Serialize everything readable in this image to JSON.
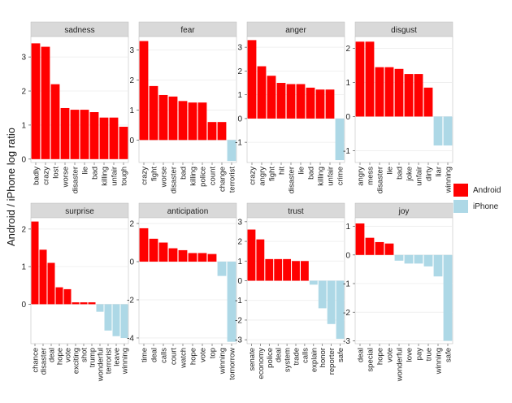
{
  "chart_data": {
    "type": "bar",
    "ylabel": "Android / iPhone log ratio",
    "legend": [
      {
        "name": "Android",
        "color": "#ff0000"
      },
      {
        "name": "iPhone",
        "color": "#add8e6"
      }
    ],
    "panels": [
      {
        "title": "sadness",
        "ylim": [
          -0.1,
          3.6
        ],
        "ticks": [
          0,
          1,
          2,
          3
        ],
        "categories": [
          "badly",
          "crazy",
          "lost",
          "worse",
          "disaster",
          "lie",
          "bad",
          "killing",
          "unfair",
          "tough"
        ],
        "values": [
          3.4,
          3.3,
          2.2,
          1.5,
          1.45,
          1.45,
          1.38,
          1.22,
          1.22,
          0.95
        ]
      },
      {
        "title": "fear",
        "ylim": [
          -0.75,
          3.45
        ],
        "ticks": [
          0,
          1,
          2,
          3
        ],
        "categories": [
          "crazy",
          "fight",
          "worse",
          "disaster",
          "bad",
          "killing",
          "police",
          "count",
          "change",
          "terrorist"
        ],
        "values": [
          3.3,
          1.8,
          1.5,
          1.45,
          1.3,
          1.25,
          1.25,
          0.6,
          0.6,
          -0.7
        ]
      },
      {
        "title": "anger",
        "ylim": [
          -1.85,
          3.45
        ],
        "ticks": [
          -1,
          0,
          1,
          2,
          3
        ],
        "categories": [
          "crazy",
          "angry",
          "fight",
          "hit",
          "disaster",
          "lie",
          "bad",
          "killing",
          "unfair",
          "crime"
        ],
        "values": [
          3.3,
          2.2,
          1.8,
          1.5,
          1.45,
          1.45,
          1.3,
          1.22,
          1.22,
          -1.75
        ]
      },
      {
        "title": "disgust",
        "ylim": [
          -1.35,
          2.35
        ],
        "ticks": [
          -1,
          0,
          1,
          2
        ],
        "categories": [
          "angry",
          "mess",
          "disaster",
          "lie",
          "bad",
          "joke",
          "unfair",
          "dirty",
          "liar",
          "winning"
        ],
        "values": [
          2.2,
          2.2,
          1.45,
          1.45,
          1.4,
          1.25,
          1.25,
          0.85,
          -0.85,
          -0.85
        ]
      },
      {
        "title": "surprise",
        "ylim": [
          -1.05,
          2.3
        ],
        "ticks": [
          0,
          1,
          2
        ],
        "categories": [
          "chance",
          "disaster",
          "deal",
          "hope",
          "vote",
          "exciting",
          "shot",
          "trump",
          "wonderful",
          "terrorist",
          "leave",
          "winning"
        ],
        "values": [
          2.2,
          1.45,
          1.1,
          0.45,
          0.4,
          0.05,
          0.05,
          0.05,
          -0.2,
          -0.7,
          -0.85,
          -0.9
        ]
      },
      {
        "title": "anticipation",
        "ylim": [
          -4.3,
          2.3
        ],
        "ticks": [
          -4,
          -2,
          0,
          2
        ],
        "categories": [
          "time",
          "deal",
          "calls",
          "court",
          "watch",
          "hope",
          "vote",
          "top",
          "winning",
          "tomorrow"
        ],
        "values": [
          1.75,
          1.2,
          1.0,
          0.7,
          0.6,
          0.45,
          0.45,
          0.4,
          -0.75,
          -4.2
        ]
      },
      {
        "title": "trust",
        "ylim": [
          -3.2,
          3.2
        ],
        "ticks": [
          -3,
          -2,
          -1,
          0,
          1,
          2,
          3
        ],
        "categories": [
          "senate",
          "economy",
          "police",
          "deal",
          "system",
          "trade",
          "calls",
          "explain",
          "honor",
          "reporter",
          "safe"
        ],
        "values": [
          2.6,
          2.1,
          1.1,
          1.1,
          1.1,
          1.0,
          1.0,
          -0.2,
          -1.4,
          -2.2,
          -2.95
        ]
      },
      {
        "title": "joy",
        "ylim": [
          -3.1,
          1.3
        ],
        "ticks": [
          -3,
          -2,
          -1,
          0,
          1
        ],
        "categories": [
          "deal",
          "special",
          "hope",
          "vote",
          "wonderful",
          "love",
          "pay",
          "true",
          "winning",
          "safe"
        ],
        "values": [
          1.1,
          0.6,
          0.45,
          0.4,
          -0.2,
          -0.3,
          -0.3,
          -0.4,
          -0.75,
          -3.0
        ]
      }
    ]
  }
}
